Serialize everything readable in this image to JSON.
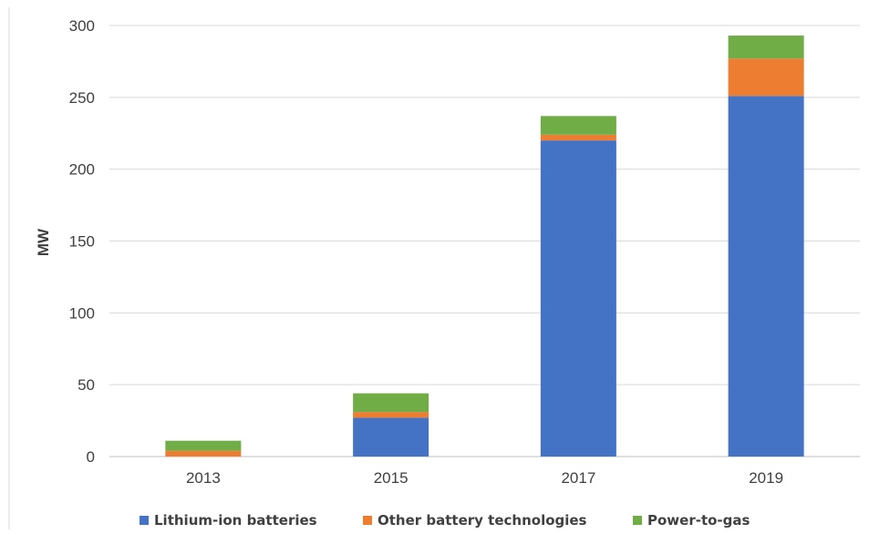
{
  "chart_data": {
    "type": "bar",
    "stacked": true,
    "title": "",
    "xlabel": "",
    "ylabel": "MW",
    "ylim": [
      0,
      300
    ],
    "yticks": [
      0,
      50,
      100,
      150,
      200,
      250,
      300
    ],
    "grid": true,
    "legend_position": "bottom",
    "categories": [
      "2013",
      "2015",
      "2017",
      "2019"
    ],
    "series": [
      {
        "name": "Lithium-ion batteries",
        "color": "#4472C4",
        "values": [
          0,
          27,
          220,
          251
        ]
      },
      {
        "name": "Other battery technologies",
        "color": "#ED7D31",
        "values": [
          4,
          4,
          4,
          26
        ]
      },
      {
        "name": "Power-to-gas",
        "color": "#70AD47",
        "values": [
          7,
          13,
          13,
          16
        ]
      }
    ]
  }
}
